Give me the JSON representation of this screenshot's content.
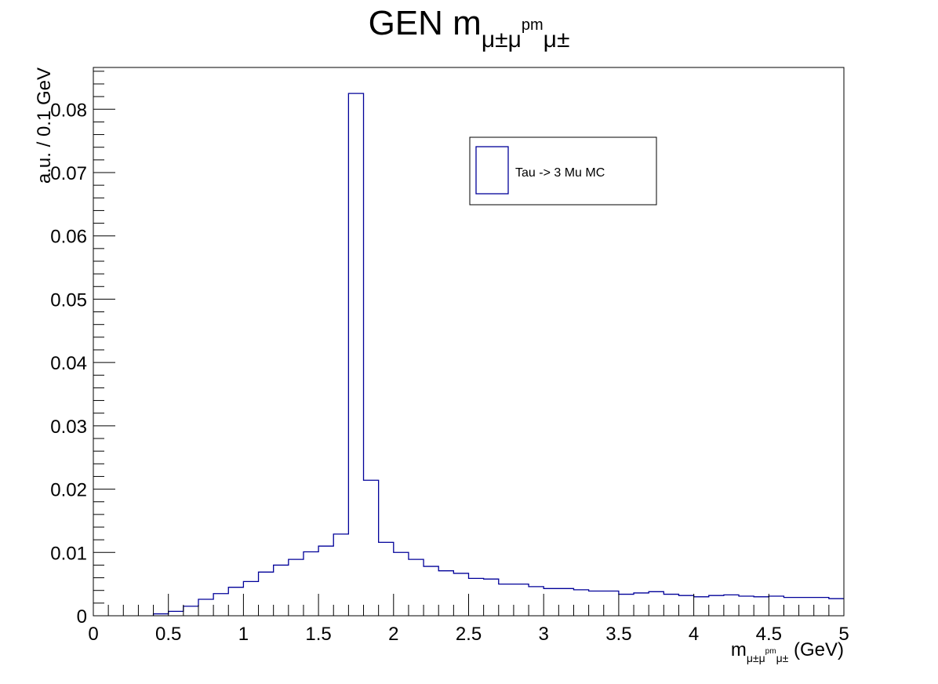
{
  "chart_data": {
    "type": "bar",
    "title": {
      "main": "GEN m",
      "sub1": "μ±μ",
      "sup": "pm",
      "sub2": "μ±"
    },
    "xlabel": {
      "main": "m",
      "sub1": "μ±μ",
      "sup": "pm",
      "sub2": "μ±",
      "unit": " (GeV)"
    },
    "ylabel": "a.u. / 0.1 GeV",
    "xlim": [
      0,
      5
    ],
    "ylim": [
      0,
      0.0866
    ],
    "x_ticks": [
      "0",
      "0.5",
      "1",
      "1.5",
      "2",
      "2.5",
      "3",
      "3.5",
      "4",
      "4.5",
      "5"
    ],
    "y_ticks": [
      "0",
      "0.01",
      "0.02",
      "0.03",
      "0.04",
      "0.05",
      "0.06",
      "0.07",
      "0.08"
    ],
    "bin_width": 0.1,
    "series": [
      {
        "name": "Tau -> 3 Mu MC",
        "color": "#000099",
        "bin_edges": [
          0,
          0.1,
          0.2,
          0.3,
          0.4,
          0.5,
          0.6,
          0.7,
          0.8,
          0.9,
          1.0,
          1.1,
          1.2,
          1.3,
          1.4,
          1.5,
          1.6,
          1.7,
          1.8,
          1.9,
          2.0,
          2.1,
          2.2,
          2.3,
          2.4,
          2.5,
          2.6,
          2.7,
          2.8,
          2.9,
          3.0,
          3.1,
          3.2,
          3.3,
          3.4,
          3.5,
          3.6,
          3.7,
          3.8,
          3.9,
          4.0,
          4.1,
          4.2,
          4.3,
          4.4,
          4.5,
          4.6,
          4.7,
          4.8,
          4.9,
          5.0
        ],
        "values": [
          0,
          0,
          0,
          0,
          0.0003,
          0.0007,
          0.0015,
          0.0026,
          0.0035,
          0.0045,
          0.0054,
          0.0069,
          0.008,
          0.0089,
          0.0101,
          0.011,
          0.0129,
          0.0825,
          0.0214,
          0.0116,
          0.01,
          0.0089,
          0.0078,
          0.0071,
          0.0067,
          0.0059,
          0.0058,
          0.005,
          0.005,
          0.0046,
          0.0043,
          0.0043,
          0.0041,
          0.0039,
          0.0039,
          0.0034,
          0.0036,
          0.0038,
          0.0034,
          0.0032,
          0.003,
          0.0032,
          0.0033,
          0.0031,
          0.003,
          0.0031,
          0.0029,
          0.0029,
          0.0029,
          0.0027
        ]
      }
    ],
    "legend": {
      "position": "top-right"
    },
    "grid": false
  }
}
